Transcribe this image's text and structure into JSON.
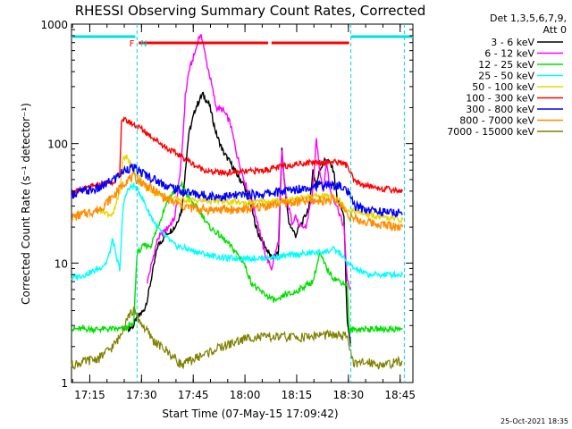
{
  "chart_data": {
    "type": "line",
    "title": "RHESSI Observing Summary Count Rates, Corrected",
    "xlabel": "Start Time (07-May-15 17:09:42)",
    "ylabel": "Corrected Count Rate (s⁻¹ detector⁻¹)",
    "yscale": "log",
    "ylim": [
      1,
      1000
    ],
    "xlim_minutes": [
      0,
      99
    ],
    "yticks": [
      {
        "value": 1,
        "label": "1"
      },
      {
        "value": 10,
        "label": "10"
      },
      {
        "value": 100,
        "label": "100"
      },
      {
        "value": 1000,
        "label": "1000"
      }
    ],
    "xticks": [
      {
        "minutes": 5.3,
        "label": "17:15"
      },
      {
        "minutes": 20.3,
        "label": "17:30"
      },
      {
        "minutes": 35.3,
        "label": "17:45"
      },
      {
        "minutes": 50.3,
        "label": "18:00"
      },
      {
        "minutes": 65.3,
        "label": "18:15"
      },
      {
        "minutes": 80.3,
        "label": "18:30"
      },
      {
        "minutes": 95.3,
        "label": "18:45"
      }
    ],
    "legend_header": "Det 1,3,5,6,7,9,",
    "legend_header2": "Att 0",
    "legend_position": "right",
    "footer_date": "25-Oct-2021 18:35",
    "annotations": [
      {
        "label": "F",
        "minutes": 17.5,
        "color": "#ff0000"
      },
      {
        "label": "N",
        "minutes": 21.0,
        "color": "#00d8d8"
      }
    ],
    "night_boundaries_minutes": [
      19.0,
      81.0,
      96.5
    ],
    "series": [
      {
        "name": "3 - 6 keV",
        "color": "#000000",
        "points": [
          [
            16.5,
            2.8
          ],
          [
            18,
            3
          ],
          [
            19,
            3.5
          ],
          [
            21,
            4
          ],
          [
            22,
            5
          ],
          [
            25,
            14
          ],
          [
            28,
            18
          ],
          [
            30,
            20
          ],
          [
            32,
            28
          ],
          [
            33,
            60
          ],
          [
            34,
            120
          ],
          [
            36,
            200
          ],
          [
            38,
            260
          ],
          [
            40,
            210
          ],
          [
            42,
            120
          ],
          [
            44,
            85
          ],
          [
            46,
            70
          ],
          [
            48,
            55
          ],
          [
            50,
            45
          ],
          [
            52,
            30
          ],
          [
            54,
            18
          ],
          [
            55,
            16
          ],
          [
            56,
            14
          ],
          [
            58,
            11
          ],
          [
            60,
            12
          ],
          [
            61,
            90
          ],
          [
            62,
            40
          ],
          [
            63,
            22
          ],
          [
            65,
            17
          ],
          [
            66,
            20
          ],
          [
            67,
            22
          ],
          [
            69,
            30
          ],
          [
            70,
            60
          ],
          [
            71,
            45
          ],
          [
            72,
            60
          ],
          [
            73,
            70
          ],
          [
            74,
            75
          ],
          [
            76,
            60
          ],
          [
            77,
            35
          ],
          [
            79,
            25
          ],
          [
            80,
            3
          ],
          [
            81,
            2
          ]
        ]
      },
      {
        "name": "6 - 12 keV",
        "color": "#ff00ff",
        "points": [
          [
            22,
            7
          ],
          [
            25,
            16
          ],
          [
            28,
            20
          ],
          [
            30,
            24
          ],
          [
            32,
            80
          ],
          [
            33,
            250
          ],
          [
            34,
            400
          ],
          [
            36,
            600
          ],
          [
            37,
            800
          ],
          [
            38,
            750
          ],
          [
            39,
            500
          ],
          [
            40,
            380
          ],
          [
            42,
            200
          ],
          [
            44,
            190
          ],
          [
            46,
            150
          ],
          [
            48,
            80
          ],
          [
            50,
            50
          ],
          [
            52,
            35
          ],
          [
            54,
            22
          ],
          [
            56,
            12
          ],
          [
            58,
            9
          ],
          [
            60,
            15
          ],
          [
            61,
            85
          ],
          [
            62,
            38
          ],
          [
            64,
            22
          ],
          [
            65,
            25
          ],
          [
            66,
            20
          ],
          [
            68,
            20
          ],
          [
            70,
            40
          ],
          [
            71,
            110
          ],
          [
            72,
            60
          ],
          [
            73,
            40
          ],
          [
            74,
            70
          ],
          [
            75,
            40
          ],
          [
            77,
            30
          ],
          [
            79,
            20
          ],
          [
            80,
            7
          ],
          [
            81,
            6
          ]
        ]
      },
      {
        "name": "12 - 25 keV",
        "color": "#00e000",
        "points": [
          [
            0,
            2.8
          ],
          [
            16,
            2.8
          ],
          [
            16.5,
            3
          ],
          [
            18,
            3
          ],
          [
            19,
            12
          ],
          [
            21,
            14
          ],
          [
            23,
            14
          ],
          [
            25,
            20
          ],
          [
            28,
            35
          ],
          [
            30,
            40
          ],
          [
            32,
            45
          ],
          [
            34,
            35
          ],
          [
            36,
            30
          ],
          [
            38,
            25
          ],
          [
            40,
            20
          ],
          [
            42,
            18
          ],
          [
            44,
            16
          ],
          [
            46,
            14
          ],
          [
            48,
            12
          ],
          [
            50,
            10
          ],
          [
            52,
            7
          ],
          [
            54,
            6
          ],
          [
            56,
            5.5
          ],
          [
            58,
            5
          ],
          [
            60,
            4.8
          ],
          [
            62,
            5.5
          ],
          [
            64,
            5.5
          ],
          [
            66,
            6
          ],
          [
            68,
            6.5
          ],
          [
            70,
            7
          ],
          [
            72,
            12
          ],
          [
            74,
            9
          ],
          [
            76,
            7.5
          ],
          [
            78,
            7
          ],
          [
            80,
            6.5
          ],
          [
            80.5,
            2.7
          ],
          [
            82,
            2.8
          ],
          [
            96,
            2.8
          ]
        ]
      },
      {
        "name": "25 - 50 keV",
        "color": "#00ffff",
        "points": [
          [
            0,
            7.5
          ],
          [
            4,
            8
          ],
          [
            8,
            9
          ],
          [
            10,
            10
          ],
          [
            11,
            12
          ],
          [
            12,
            16
          ],
          [
            13,
            11
          ],
          [
            14,
            9
          ],
          [
            15,
            30
          ],
          [
            16,
            40
          ],
          [
            18,
            45
          ],
          [
            20,
            38
          ],
          [
            22,
            28
          ],
          [
            24,
            22
          ],
          [
            26,
            18
          ],
          [
            28,
            16
          ],
          [
            30,
            14
          ],
          [
            34,
            13
          ],
          [
            38,
            12
          ],
          [
            44,
            11
          ],
          [
            50,
            11
          ],
          [
            56,
            11
          ],
          [
            62,
            11.5
          ],
          [
            68,
            12
          ],
          [
            74,
            12.5
          ],
          [
            76,
            13
          ],
          [
            78,
            12
          ],
          [
            80,
            10
          ],
          [
            82,
            9
          ],
          [
            86,
            8
          ],
          [
            90,
            8
          ],
          [
            96,
            8
          ]
        ]
      },
      {
        "name": "50 - 100 keV",
        "color": "#e8d800",
        "points": [
          [
            8,
            28
          ],
          [
            12,
            25
          ],
          [
            14,
            40
          ],
          [
            15,
            75
          ],
          [
            16,
            78
          ],
          [
            18,
            60
          ],
          [
            20,
            50
          ],
          [
            22,
            42
          ],
          [
            25,
            38
          ],
          [
            28,
            35
          ],
          [
            32,
            34
          ],
          [
            40,
            33
          ],
          [
            50,
            32
          ],
          [
            60,
            33
          ],
          [
            70,
            36
          ],
          [
            76,
            37
          ],
          [
            78,
            33
          ],
          [
            80,
            28
          ],
          [
            84,
            26
          ],
          [
            90,
            24
          ],
          [
            96,
            23
          ]
        ]
      },
      {
        "name": "100 - 300 keV",
        "color": "#ff0000",
        "points": [
          [
            0,
            38
          ],
          [
            4,
            42
          ],
          [
            8,
            45
          ],
          [
            12,
            48
          ],
          [
            14,
            55
          ],
          [
            14.5,
            160
          ],
          [
            17,
            150
          ],
          [
            20,
            135
          ],
          [
            24,
            110
          ],
          [
            28,
            90
          ],
          [
            32,
            78
          ],
          [
            36,
            65
          ],
          [
            40,
            58
          ],
          [
            44,
            57
          ],
          [
            50,
            58
          ],
          [
            56,
            60
          ],
          [
            62,
            65
          ],
          [
            66,
            68
          ],
          [
            70,
            70
          ],
          [
            74,
            70
          ],
          [
            78,
            70
          ],
          [
            80,
            65
          ],
          [
            82,
            48
          ],
          [
            86,
            44
          ],
          [
            90,
            42
          ],
          [
            96,
            40
          ]
        ]
      },
      {
        "name": "300 - 800 keV",
        "color": "#0000ff",
        "points": [
          [
            0,
            38
          ],
          [
            4,
            40
          ],
          [
            8,
            42
          ],
          [
            12,
            50
          ],
          [
            14,
            55
          ],
          [
            16,
            62
          ],
          [
            18,
            62
          ],
          [
            20,
            58
          ],
          [
            24,
            50
          ],
          [
            28,
            44
          ],
          [
            32,
            40
          ],
          [
            38,
            37
          ],
          [
            44,
            36
          ],
          [
            50,
            37
          ],
          [
            56,
            38
          ],
          [
            62,
            40
          ],
          [
            66,
            42
          ],
          [
            70,
            44
          ],
          [
            74,
            45
          ],
          [
            78,
            44
          ],
          [
            80,
            40
          ],
          [
            82,
            30
          ],
          [
            86,
            28
          ],
          [
            90,
            27
          ],
          [
            96,
            26
          ]
        ]
      },
      {
        "name": "800 - 7000 keV",
        "color": "#ff8c00",
        "points": [
          [
            0,
            24
          ],
          [
            4,
            26
          ],
          [
            8,
            28
          ],
          [
            12,
            36
          ],
          [
            14,
            42
          ],
          [
            16,
            50
          ],
          [
            18,
            52
          ],
          [
            20,
            48
          ],
          [
            24,
            40
          ],
          [
            28,
            34
          ],
          [
            32,
            30
          ],
          [
            38,
            28
          ],
          [
            44,
            28
          ],
          [
            50,
            28
          ],
          [
            56,
            30
          ],
          [
            62,
            32
          ],
          [
            70,
            33
          ],
          [
            76,
            34
          ],
          [
            78,
            31
          ],
          [
            80,
            26
          ],
          [
            82,
            23
          ],
          [
            86,
            22
          ],
          [
            90,
            21
          ],
          [
            96,
            20
          ]
        ]
      },
      {
        "name": "7000 - 15000 keV",
        "color": "#808000",
        "points": [
          [
            0,
            1.4
          ],
          [
            4,
            1.5
          ],
          [
            8,
            1.6
          ],
          [
            12,
            2.0
          ],
          [
            14,
            2.4
          ],
          [
            16,
            3.5
          ],
          [
            18,
            4.0
          ],
          [
            20,
            3.2
          ],
          [
            24,
            2.2
          ],
          [
            28,
            1.8
          ],
          [
            32,
            1.4
          ],
          [
            36,
            1.6
          ],
          [
            40,
            1.8
          ],
          [
            44,
            2.0
          ],
          [
            48,
            2.2
          ],
          [
            52,
            2.4
          ],
          [
            56,
            2.4
          ],
          [
            60,
            2.4
          ],
          [
            64,
            2.4
          ],
          [
            68,
            2.4
          ],
          [
            72,
            2.5
          ],
          [
            76,
            2.5
          ],
          [
            80,
            2.4
          ],
          [
            82,
            1.4
          ],
          [
            86,
            1.5
          ],
          [
            90,
            1.4
          ],
          [
            96,
            1.5
          ]
        ]
      }
    ]
  }
}
